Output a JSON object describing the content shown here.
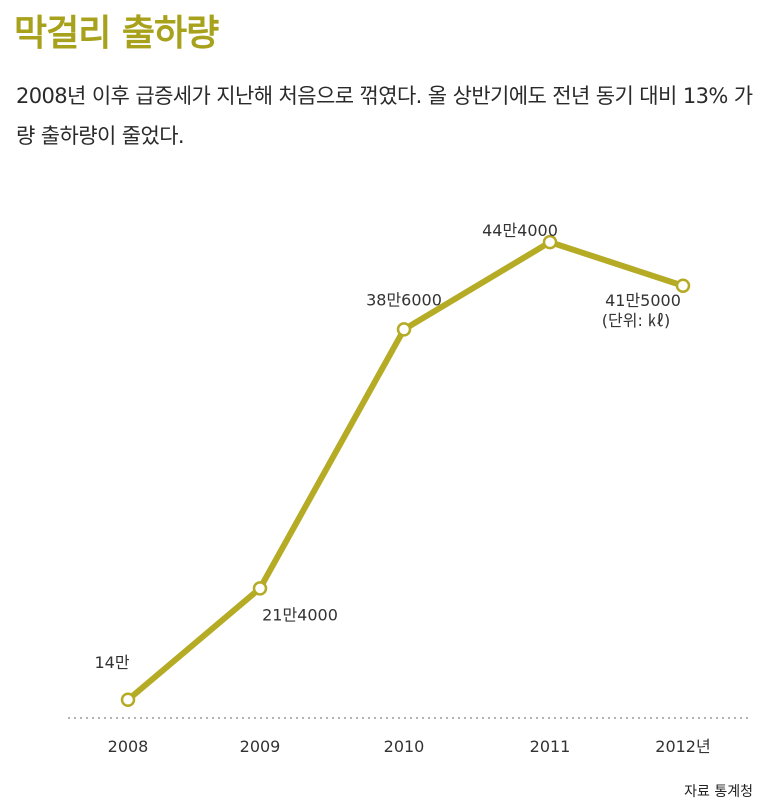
{
  "chart_data": {
    "type": "line",
    "title": "막걸리 출하량",
    "subtitle": "2008년 이후 급증세가 지난해 처음으로 꺾였다. 올 상반기에도 전년 동기 대비 13% 가량 출하량이 줄었다.",
    "categories": [
      "2008",
      "2009",
      "2010",
      "2011",
      "2012년"
    ],
    "values": [
      140000,
      214000,
      386000,
      444000,
      415000
    ],
    "data_labels": [
      "14만",
      "21만4000",
      "38만6000",
      "44만4000",
      "41만5000"
    ],
    "unit_note": "(단위: ㎘)",
    "source": "자료 통계청",
    "ylim": [
      100000,
      460000
    ],
    "grid": false,
    "color": "#b5ab25"
  }
}
